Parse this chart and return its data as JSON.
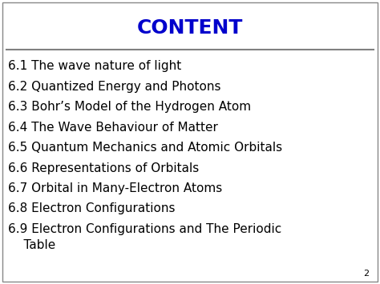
{
  "title": "CONTENT",
  "title_color": "#0000CC",
  "title_fontsize": 18,
  "background_color": "#FFFFFF",
  "line_color": "#808080",
  "page_number": "2",
  "page_number_color": "#000000",
  "items": [
    "6.1 The wave nature of light",
    "6.2 Quantized Energy and Photons",
    "6.3 Bohr’s Model of the Hydrogen Atom",
    "6.4 The Wave Behaviour of Matter",
    "6.5 Quantum Mechanics and Atomic Orbitals",
    "6.6 Representations of Orbitals",
    "6.7 Orbital in Many-Electron Atoms",
    "6.8 Electron Configurations",
    "6.9 Electron Configurations and The Periodic\n    Table"
  ],
  "items_color": "#000000",
  "items_fontsize": 11.0,
  "border_color": "#888888",
  "border_linewidth": 1.0
}
